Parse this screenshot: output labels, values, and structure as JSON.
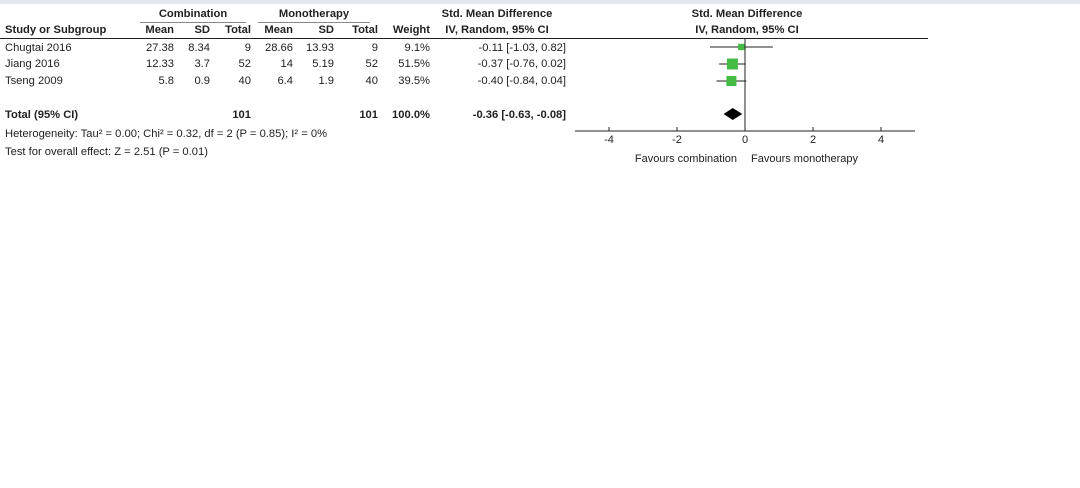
{
  "headers": {
    "group1": "Combination",
    "group2": "Monotherapy",
    "smd": "Std. Mean Difference",
    "smd_sub": "IV, Random, 95% CI",
    "plot": "Std. Mean Difference",
    "plot_sub": "IV, Random, 95% CI",
    "study": "Study or Subgroup",
    "mean1": "Mean",
    "sd1": "SD",
    "total1": "Total",
    "mean2": "Mean",
    "sd2": "SD",
    "total2": "Total",
    "weight": "Weight"
  },
  "studies": [
    {
      "name": "Chugtai 2016",
      "mean1": "27.38",
      "sd1": "8.34",
      "n1": "9",
      "mean2": "28.66",
      "sd2": "13.93",
      "n2": "9",
      "weight": "9.1%",
      "ci": "-0.11 [-1.03, 0.82]"
    },
    {
      "name": "Jiang 2016",
      "mean1": "12.33",
      "sd1": "3.7",
      "n1": "52",
      "mean2": "14",
      "sd2": "5.19",
      "n2": "52",
      "weight": "51.5%",
      "ci": "-0.37 [-0.76, 0.02]"
    },
    {
      "name": "Tseng 2009",
      "mean1": "5.8",
      "sd1": "0.9",
      "n1": "40",
      "mean2": "6.4",
      "sd2": "1.9",
      "n2": "40",
      "weight": "39.5%",
      "ci": "-0.40 [-0.84, 0.04]"
    }
  ],
  "total": {
    "label": "Total (95% CI)",
    "n1": "101",
    "n2": "101",
    "weight": "100.0%",
    "ci": "-0.36 [-0.63, -0.08]"
  },
  "heterogeneity": "Heterogeneity: Tau² = 0.00; Chi² = 0.32, df = 2 (P = 0.85); I² = 0%",
  "overall_effect": "Test for overall effect: Z = 2.51 (P = 0.01)",
  "chart_data": {
    "type": "forest",
    "xlim": [
      -5,
      5
    ],
    "ticks": [
      -4,
      -2,
      0,
      2,
      4
    ],
    "tick_labels": [
      "-4",
      "-2",
      "0",
      "2",
      "4"
    ],
    "favours_left": "Favours combination",
    "favours_right": "Favours monotherapy",
    "marker_color": "#44bb44",
    "studies": [
      {
        "name": "Chugtai 2016",
        "est": -0.11,
        "lo": -1.03,
        "hi": 0.82,
        "weight": 9.1
      },
      {
        "name": "Jiang 2016",
        "est": -0.37,
        "lo": -0.76,
        "hi": 0.02,
        "weight": 51.5
      },
      {
        "name": "Tseng 2009",
        "est": -0.4,
        "lo": -0.84,
        "hi": 0.04,
        "weight": 39.5
      }
    ],
    "pooled": {
      "est": -0.36,
      "lo": -0.63,
      "hi": -0.08
    }
  }
}
